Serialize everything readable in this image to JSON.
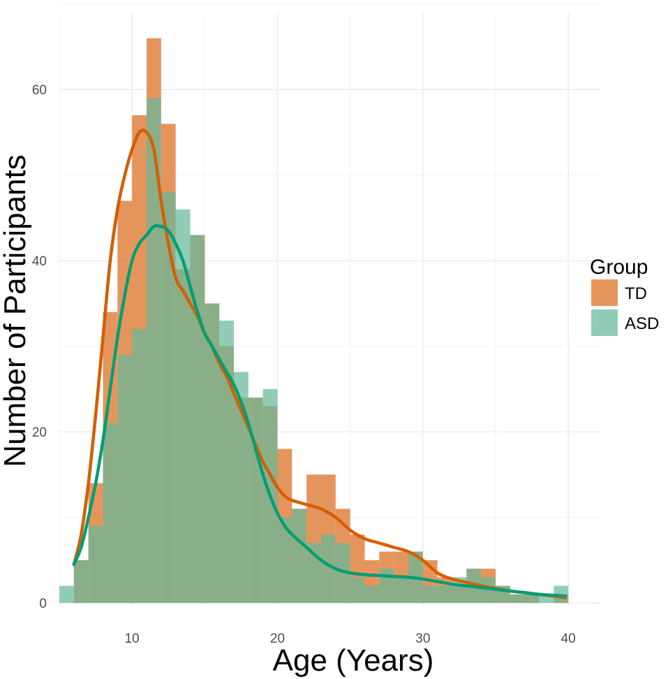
{
  "chart_data": {
    "type": "histogram",
    "title": "",
    "xlabel": "Age (Years)",
    "ylabel": "Number of Participants",
    "xlim": [
      5.0,
      42.2
    ],
    "ylim": [
      -0.4,
      69
    ],
    "x_ticks": [
      10,
      20,
      30,
      40
    ],
    "y_ticks": [
      0,
      20,
      40,
      60
    ],
    "bin_width": 1.0,
    "bin_starts": [
      5,
      6,
      7,
      8,
      9,
      10,
      11,
      12,
      13,
      14,
      15,
      16,
      17,
      18,
      19,
      20,
      21,
      22,
      23,
      24,
      25,
      26,
      27,
      28,
      29,
      30,
      31,
      32,
      33,
      34,
      35,
      36,
      37,
      38,
      39
    ],
    "grid": true,
    "legend": {
      "title": "Group",
      "position": "right"
    },
    "series": [
      {
        "name": "TD",
        "color": "#e0823f",
        "line_color": "#d55e00",
        "counts": [
          0,
          5,
          14,
          34,
          47,
          57,
          66,
          56,
          39,
          43,
          35,
          30,
          24,
          24,
          23,
          18,
          11,
          15,
          15,
          11,
          8,
          5,
          6,
          6,
          6,
          5,
          3,
          2,
          4,
          4,
          2,
          1,
          1,
          0,
          1
        ],
        "density_curve": [
          [
            6,
            4.5
          ],
          [
            6.5,
            8
          ],
          [
            7,
            14
          ],
          [
            7.5,
            22
          ],
          [
            8,
            31
          ],
          [
            8.5,
            40
          ],
          [
            9,
            46
          ],
          [
            9.5,
            50
          ],
          [
            10,
            53
          ],
          [
            10.5,
            55
          ],
          [
            11,
            55
          ],
          [
            11.5,
            53
          ],
          [
            12,
            47
          ],
          [
            12.5,
            42
          ],
          [
            13,
            38
          ],
          [
            13.5,
            36.5
          ],
          [
            14,
            35
          ],
          [
            14.5,
            33.5
          ],
          [
            15,
            31.5
          ],
          [
            15.5,
            30
          ],
          [
            16,
            28
          ],
          [
            16.5,
            26.5
          ],
          [
            17,
            24.5
          ],
          [
            17.5,
            22.5
          ],
          [
            18,
            20.5
          ],
          [
            18.5,
            18.5
          ],
          [
            19,
            16.5
          ],
          [
            19.5,
            15
          ],
          [
            20,
            13.5
          ],
          [
            20.5,
            12.5
          ],
          [
            21,
            12
          ],
          [
            22,
            11.5
          ],
          [
            23,
            11
          ],
          [
            24,
            10
          ],
          [
            25,
            8.5
          ],
          [
            26,
            7.5
          ],
          [
            27,
            7
          ],
          [
            28,
            6.5
          ],
          [
            29,
            6
          ],
          [
            30,
            5
          ],
          [
            31,
            3.5
          ],
          [
            32,
            2.8
          ],
          [
            33,
            2.4
          ],
          [
            34,
            2
          ],
          [
            35,
            1.7
          ],
          [
            36,
            1.4
          ],
          [
            37,
            1.2
          ],
          [
            38,
            1
          ],
          [
            39,
            0.8
          ],
          [
            39.8,
            0.6
          ]
        ]
      },
      {
        "name": "ASD",
        "color": "#66b99a",
        "line_color": "#009e73",
        "counts": [
          2,
          5,
          9,
          21,
          29,
          32,
          59,
          48,
          46,
          43,
          35,
          33,
          27,
          24,
          25,
          10,
          11,
          7,
          8,
          7,
          3,
          2,
          4,
          3,
          6,
          2,
          2,
          3,
          4,
          3,
          2,
          1,
          1,
          1,
          2
        ],
        "density_curve": [
          [
            6,
            4.5
          ],
          [
            6.5,
            6.5
          ],
          [
            7,
            10
          ],
          [
            7.5,
            14
          ],
          [
            8,
            19
          ],
          [
            8.5,
            25
          ],
          [
            9,
            31
          ],
          [
            9.5,
            36
          ],
          [
            10,
            40
          ],
          [
            10.5,
            42
          ],
          [
            11,
            43
          ],
          [
            11.5,
            44
          ],
          [
            12,
            44
          ],
          [
            12.5,
            43.5
          ],
          [
            13,
            42
          ],
          [
            13.5,
            40
          ],
          [
            14,
            37
          ],
          [
            14.5,
            34
          ],
          [
            15,
            31.5
          ],
          [
            15.5,
            30
          ],
          [
            16,
            28.5
          ],
          [
            16.5,
            27
          ],
          [
            17,
            25.5
          ],
          [
            17.5,
            23.5
          ],
          [
            18,
            21
          ],
          [
            18.5,
            18
          ],
          [
            19,
            15
          ],
          [
            19.5,
            12.5
          ],
          [
            20,
            10.5
          ],
          [
            20.5,
            9
          ],
          [
            21,
            8
          ],
          [
            22,
            6.5
          ],
          [
            23,
            5
          ],
          [
            24,
            4
          ],
          [
            25,
            3.5
          ],
          [
            26,
            3.3
          ],
          [
            27,
            3.2
          ],
          [
            28,
            3.1
          ],
          [
            29,
            3
          ],
          [
            30,
            2.8
          ],
          [
            31,
            2.5
          ],
          [
            32,
            2.2
          ],
          [
            33,
            2
          ],
          [
            34,
            1.8
          ],
          [
            35,
            1.6
          ],
          [
            36,
            1.4
          ],
          [
            37,
            1.2
          ],
          [
            38,
            1
          ],
          [
            39,
            0.9
          ],
          [
            39.8,
            0.8
          ]
        ]
      }
    ]
  }
}
